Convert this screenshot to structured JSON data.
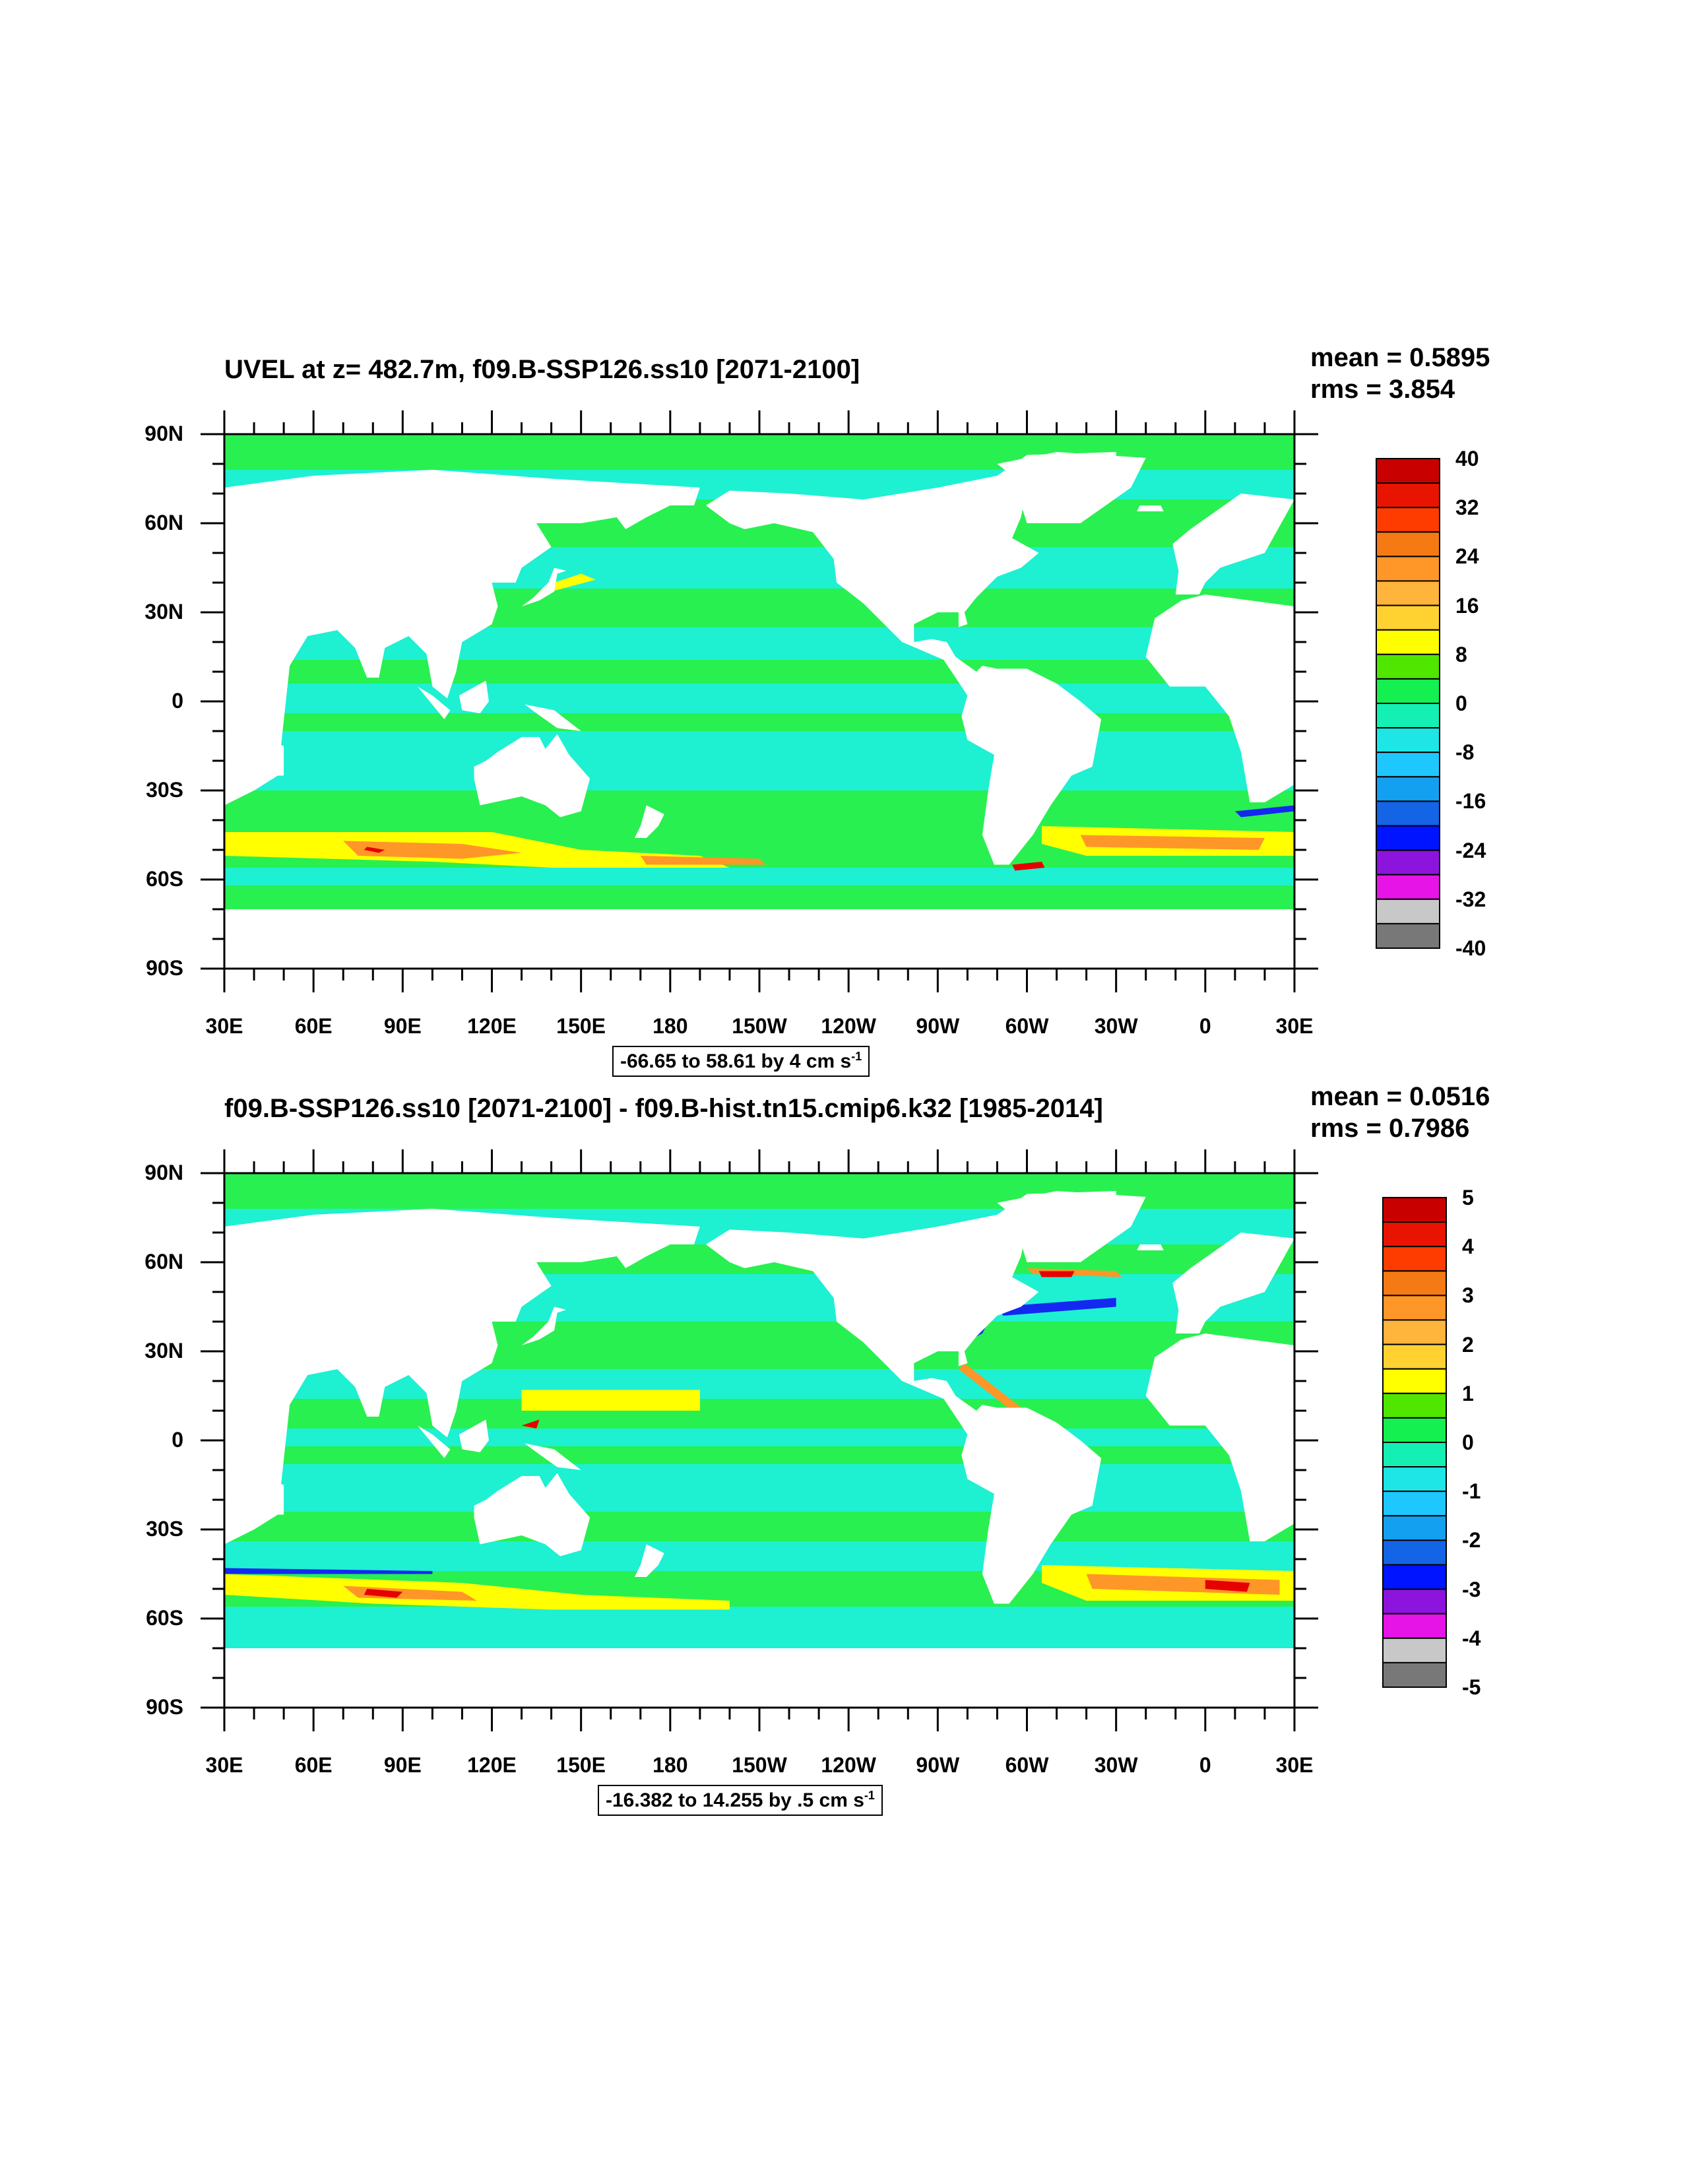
{
  "panels": [
    {
      "title": "UVEL at z= 482.7m, f09.B-SSP126.ss10 [2071-2100]",
      "mean_text": "mean = 0.5895",
      "rms_text": "rms = 3.854",
      "range_text": "-66.65 to 58.61 by 4 cm s",
      "range_sup": "-1",
      "colorbar_labels": [
        "40",
        "32",
        "24",
        "16",
        "8",
        "0",
        "-8",
        "-16",
        "-24",
        "-32",
        "-40"
      ]
    },
    {
      "title": "f09.B-SSP126.ss10 [2071-2100] - f09.B-hist.tn15.cmip6.k32 [1985-2014]",
      "mean_text": "mean = 0.0516",
      "rms_text": "rms = 0.7986",
      "range_text": "-16.382 to 14.255 by .5 cm s",
      "range_sup": "-1",
      "colorbar_labels": [
        "5",
        "4",
        "3",
        "2",
        "1",
        "0",
        "-1",
        "-2",
        "-3",
        "-4",
        "-5"
      ]
    }
  ],
  "map": {
    "lat_labels": [
      "90N",
      "60N",
      "30N",
      "0",
      "30S",
      "60S",
      "90S"
    ],
    "lon_labels": [
      "30E",
      "60E",
      "90E",
      "120E",
      "150E",
      "180",
      "150W",
      "120W",
      "90W",
      "60W",
      "30W",
      "0",
      "30E"
    ]
  },
  "colors": {
    "colorbar": [
      "#c80000",
      "#e81400",
      "#ff3c00",
      "#f57a14",
      "#ff9628",
      "#ffb43c",
      "#ffd232",
      "#ffff00",
      "#50e600",
      "#14f050",
      "#14f0b4",
      "#1ee6e6",
      "#1ec8ff",
      "#14a0f0",
      "#1464e6",
      "#0014ff",
      "#8c14dc",
      "#e614e6",
      "#c8c8c8",
      "#787878"
    ],
    "ocean_main": "#1ef0d2",
    "ocean_green": "#28f050",
    "ocean_yellow": "#ffff00",
    "ocean_orange": "#ff9628",
    "ocean_red": "#e60000",
    "ocean_blue": "#1428f0",
    "land": "#ffffff"
  },
  "chart_data": {
    "type": "heatmap",
    "variable": "UVEL",
    "units": "cm s-1",
    "panels": [
      {
        "title": "UVEL at z= 482.7m, f09.B-SSP126.ss10 [2071-2100]",
        "mean": 0.5895,
        "rms": 3.854,
        "min": -66.65,
        "max": 58.61,
        "interval": 4,
        "levels": [
          -40,
          -36,
          -32,
          -28,
          -24,
          -20,
          -16,
          -12,
          -8,
          -4,
          0,
          4,
          8,
          12,
          16,
          20,
          24,
          28,
          32,
          36,
          40
        ]
      },
      {
        "title": "f09.B-SSP126.ss10 [2071-2100] - f09.B-hist.tn15.cmip6.k32 [1985-2014]",
        "mean": 0.0516,
        "rms": 0.7986,
        "min": -16.382,
        "max": 14.255,
        "interval": 0.5,
        "levels": [
          -5,
          -4.5,
          -4,
          -3.5,
          -3,
          -2.5,
          -2,
          -1.5,
          -1,
          -0.5,
          0,
          0.5,
          1,
          1.5,
          2,
          2.5,
          3,
          3.5,
          4,
          4.5,
          5
        ]
      }
    ],
    "xlim": [
      30,
      390
    ],
    "ylim": [
      -90,
      90
    ]
  }
}
